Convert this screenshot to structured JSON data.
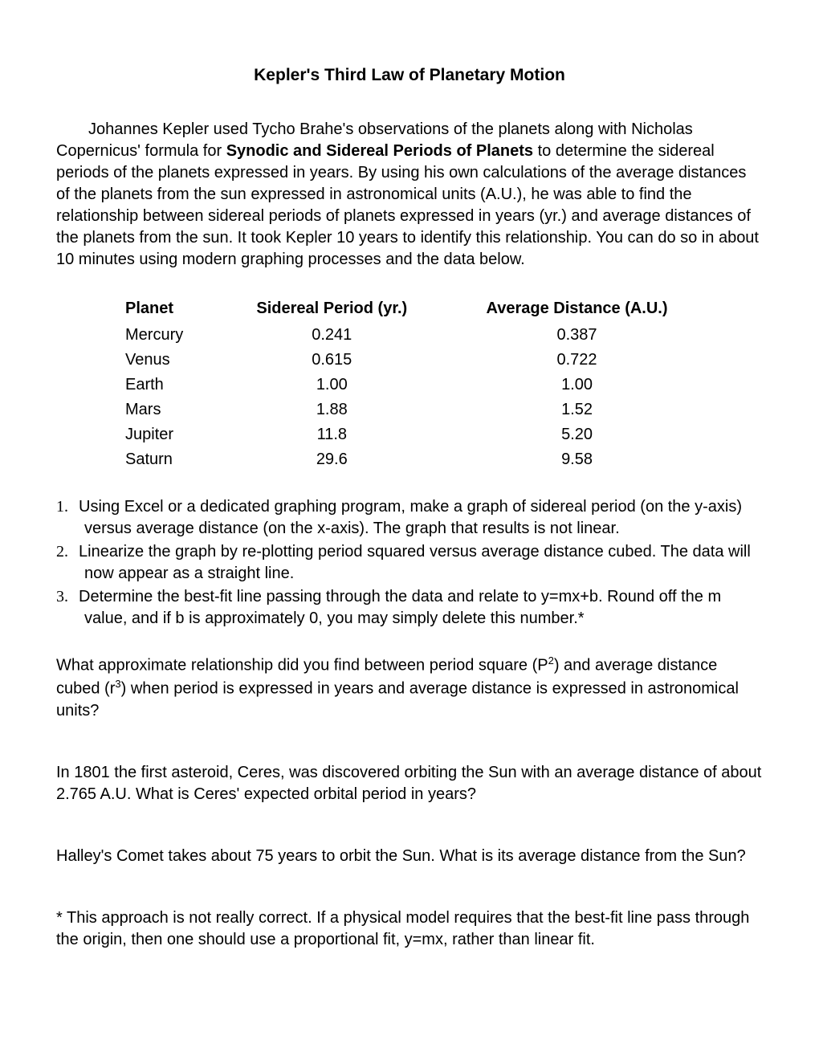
{
  "title": "Kepler's Third Law of Planetary Motion",
  "intro": {
    "part1": "Johannes Kepler used Tycho Brahe's observations of the planets along with Nicholas Copernicus' formula for ",
    "bold": "Synodic and Sidereal Periods of Planets",
    "part2": " to determine the sidereal periods of the planets expressed in years. By using his own calculations of the average distances of the planets from the sun expressed in astronomical units (A.U.), he was able to find the relationship between sidereal periods of planets expressed in years (yr.) and average distances of the planets from the sun. It took Kepler 10 years to identify this relationship. You can do so in about 10 minutes using modern graphing processes and the data below."
  },
  "table": {
    "headers": {
      "planet": "Planet",
      "period": "Sidereal Period (yr.)",
      "distance": "Average Distance (A.U.)"
    },
    "rows": [
      {
        "planet": "Mercury",
        "period": "0.241",
        "distance": "0.387"
      },
      {
        "planet": "Venus",
        "period": "0.615",
        "distance": "0.722"
      },
      {
        "planet": "Earth",
        "period": "1.00",
        "distance": "1.00"
      },
      {
        "planet": "Mars",
        "period": "1.88",
        "distance": "1.52"
      },
      {
        "planet": "Jupiter",
        "period": "11.8",
        "distance": "5.20"
      },
      {
        "planet": "Saturn",
        "period": "29.6",
        "distance": "9.58"
      }
    ]
  },
  "instructions": [
    "Using Excel or a dedicated graphing program, make a graph of sidereal period (on the y-axis) versus average distance (on the x-axis). The graph that results is not linear.",
    "Linearize the graph by re-plotting period squared versus average distance cubed. The data will now appear as a straight line.",
    "Determine the best-fit line passing through the data and relate to y=mx+b. Round off the m value, and if b is approximately 0, you may simply delete this number.*"
  ],
  "question1": {
    "pre": "What approximate relationship did you find between period square (P",
    "sup1": "2",
    "mid": ") and average distance cubed (r",
    "sup2": "3",
    "post": ") when period is expressed in years and average distance is expressed in astronomical units?"
  },
  "question2": "In 1801 the first asteroid, Ceres, was discovered orbiting the Sun with an average distance of about 2.765 A.U. What is Ceres' expected orbital period in years?",
  "question3": "Halley's Comet takes about 75 years to orbit the Sun. What is its average distance from the Sun?",
  "footnote": "* This approach is not really correct. If a physical model requires that the best-fit line pass through the origin, then one should use a proportional fit, y=mx, rather than linear fit."
}
